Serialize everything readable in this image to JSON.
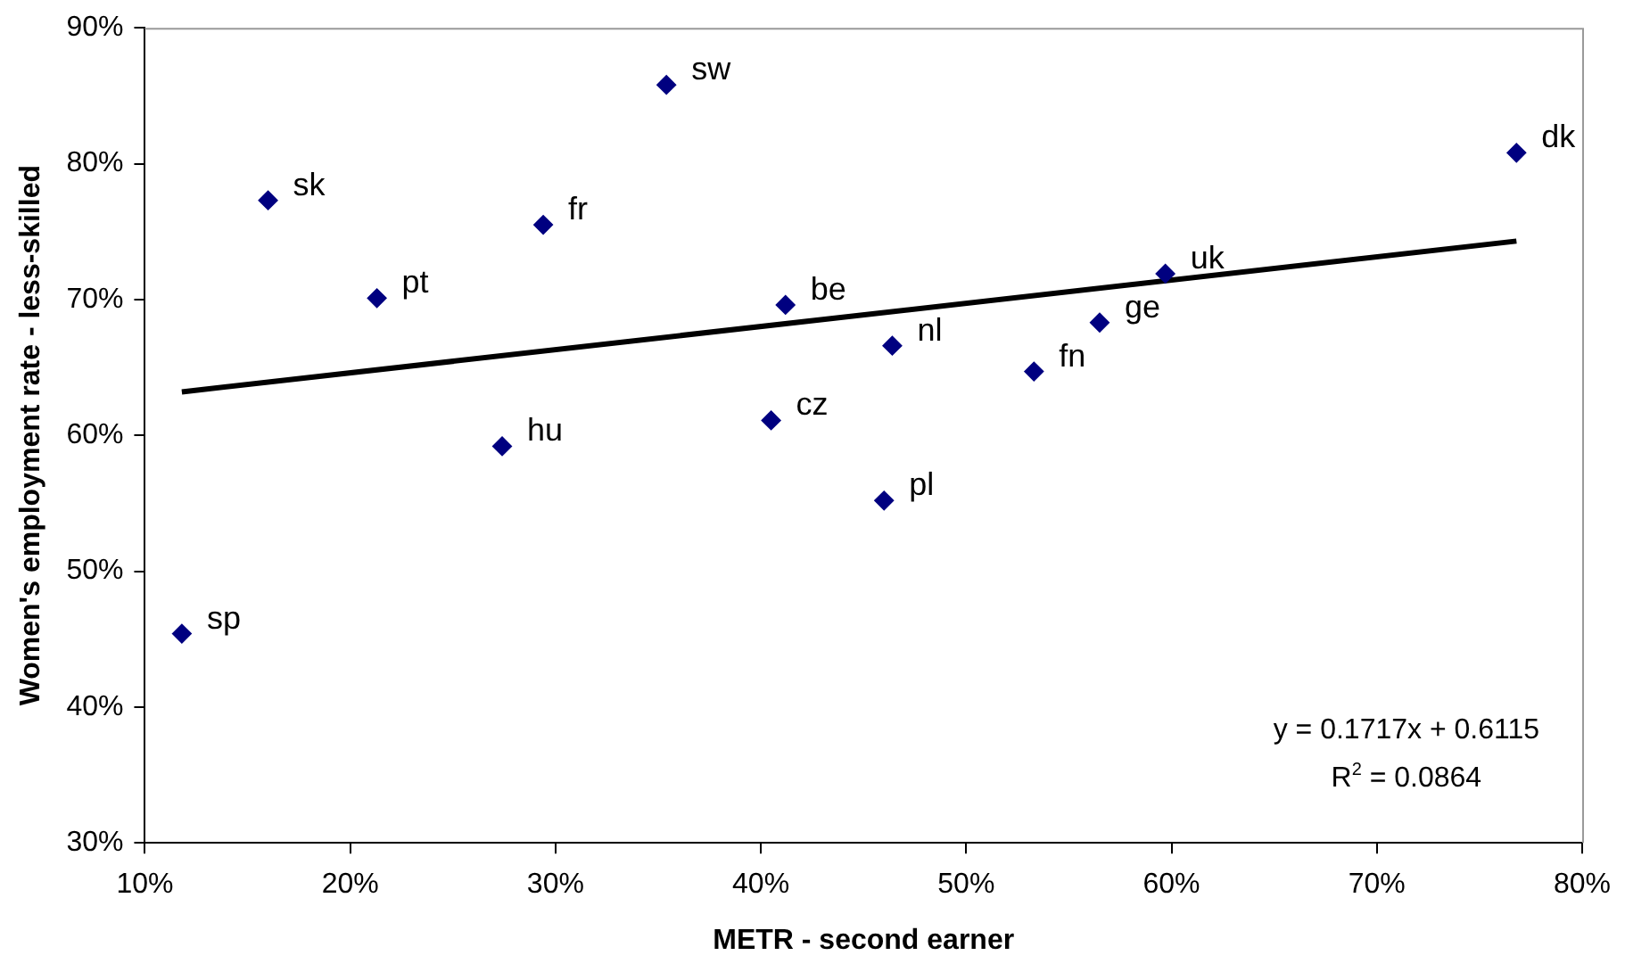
{
  "chart_data": {
    "type": "scatter",
    "xlabel": "METR - second earner",
    "ylabel": "Women's employment rate - less-skilled",
    "xlim": [
      10,
      80
    ],
    "ylim": [
      30,
      90
    ],
    "xticks": [
      {
        "value": 10,
        "label": "10%"
      },
      {
        "value": 20,
        "label": "20%"
      },
      {
        "value": 30,
        "label": "30%"
      },
      {
        "value": 40,
        "label": "40%"
      },
      {
        "value": 50,
        "label": "50%"
      },
      {
        "value": 60,
        "label": "60%"
      },
      {
        "value": 70,
        "label": "70%"
      },
      {
        "value": 80,
        "label": "80%"
      }
    ],
    "yticks": [
      {
        "value": 30,
        "label": "30%"
      },
      {
        "value": 40,
        "label": "40%"
      },
      {
        "value": 50,
        "label": "50%"
      },
      {
        "value": 60,
        "label": "60%"
      },
      {
        "value": 70,
        "label": "70%"
      },
      {
        "value": 80,
        "label": "80%"
      },
      {
        "value": 90,
        "label": "90%"
      }
    ],
    "grid": false,
    "legend": false,
    "marker": "diamond",
    "series": [
      {
        "name": "sp",
        "color": "#000080",
        "x": [
          11.8
        ],
        "values": [
          45.4
        ]
      },
      {
        "name": "sk",
        "color": "#000080",
        "x": [
          16.0
        ],
        "values": [
          77.3
        ]
      },
      {
        "name": "pt",
        "color": "#000080",
        "x": [
          21.3
        ],
        "values": [
          70.1
        ]
      },
      {
        "name": "hu",
        "color": "#000080",
        "x": [
          27.4
        ],
        "values": [
          59.2
        ]
      },
      {
        "name": "fr",
        "color": "#000080",
        "x": [
          29.4
        ],
        "values": [
          75.5
        ]
      },
      {
        "name": "sw",
        "color": "#000080",
        "x": [
          35.4
        ],
        "values": [
          85.8
        ]
      },
      {
        "name": "cz",
        "color": "#000080",
        "x": [
          40.5
        ],
        "values": [
          61.1
        ]
      },
      {
        "name": "be",
        "color": "#000080",
        "x": [
          41.2
        ],
        "values": [
          69.6
        ]
      },
      {
        "name": "pl",
        "color": "#000080",
        "x": [
          46.0
        ],
        "values": [
          55.2
        ]
      },
      {
        "name": "nl",
        "color": "#000080",
        "x": [
          46.4
        ],
        "values": [
          66.6
        ]
      },
      {
        "name": "fn",
        "color": "#000080",
        "x": [
          53.3
        ],
        "values": [
          64.7
        ]
      },
      {
        "name": "ge",
        "color": "#000080",
        "x": [
          56.5
        ],
        "values": [
          68.3
        ]
      },
      {
        "name": "uk",
        "color": "#000080",
        "x": [
          59.7
        ],
        "values": [
          71.9
        ]
      },
      {
        "name": "dk",
        "color": "#000080",
        "x": [
          76.8
        ],
        "values": [
          80.8
        ]
      },
      {
        "type": "line",
        "color": "#000000",
        "x": [
          11.8,
          76.8
        ],
        "values": [
          63.2,
          74.3
        ],
        "line_style": "solid",
        "marker": "none"
      }
    ],
    "annotations": [
      "y = 0.1717x + 0.6115",
      "R$^{2}$ = 0.0864"
    ]
  }
}
